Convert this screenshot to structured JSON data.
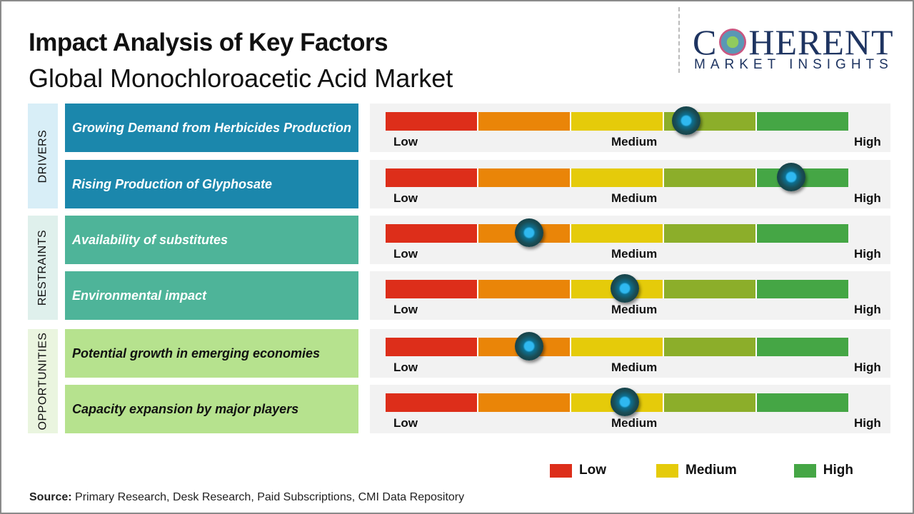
{
  "header": {
    "title": "Impact Analysis of Key Factors",
    "subtitle": "Global Monochloroacetic Acid Market"
  },
  "logo": {
    "main_left": "C",
    "main_right": "HERENT",
    "sub": "MARKET INSIGHTS"
  },
  "scale": {
    "low": "Low",
    "medium": "Medium",
    "high": "High",
    "segment_colors": [
      "#dd2e1a",
      "#ea8508",
      "#e5cb0a",
      "#8cae2a",
      "#45a645"
    ],
    "knob_color": "#2fb8f0"
  },
  "groups": [
    {
      "label": "DRIVERS",
      "bg": "#d8eef7",
      "factor_bg": "#1b87ac",
      "text_color": "#ffffff",
      "factors": [
        {
          "label": "Growing Demand from Herbicides Production",
          "impact": 0.65
        },
        {
          "label": "Rising Production of Glyphosate",
          "impact": 0.877
        }
      ]
    },
    {
      "label": "RESTRAINTS",
      "bg": "#dff0ec",
      "factor_bg": "#4eb499",
      "text_color": "#ffffff",
      "factors": [
        {
          "label": "Availability of substitutes",
          "impact": 0.31
        },
        {
          "label": "Environmental impact",
          "impact": 0.517
        }
      ]
    },
    {
      "label": "OPPORTUNITIES",
      "bg": "#eaf5df",
      "factor_bg": "#b6e28e",
      "text_color": "#111111",
      "factors": [
        {
          "label": "Potential growth in emerging economies",
          "impact": 0.31
        },
        {
          "label": "Capacity expansion by major players",
          "impact": 0.517
        }
      ]
    }
  ],
  "legend": [
    {
      "label": "Low",
      "color": "#dd2e1a"
    },
    {
      "label": "Medium",
      "color": "#e5cb0a"
    },
    {
      "label": "High",
      "color": "#45a645"
    }
  ],
  "source": {
    "label": "Source:",
    "text": " Primary Research, Desk Research, Paid Subscriptions, CMI Data Repository"
  }
}
